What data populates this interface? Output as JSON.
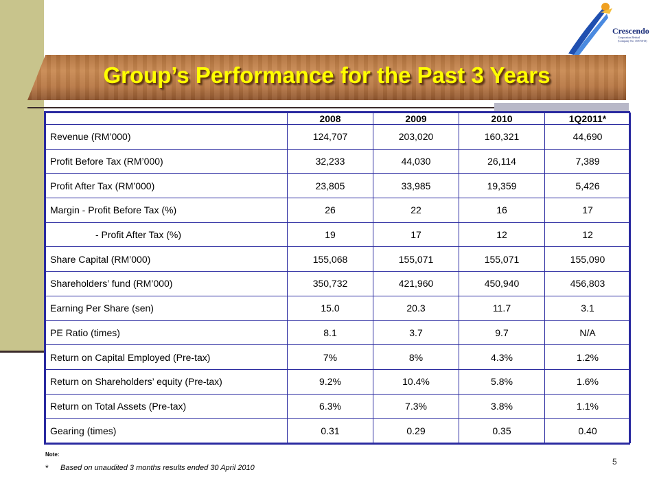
{
  "slide": {
    "title": "Group’s Performance for the Past 3 Years",
    "page_number": "5"
  },
  "logo": {
    "name": "Crescendo",
    "subtitle": "Corporation Berhad",
    "company_no": "(Company No: 359750-D)"
  },
  "table": {
    "headers": [
      "",
      "2008",
      "2009",
      "2010",
      "1Q2011*"
    ],
    "rows": [
      {
        "label": "Revenue (RM’000)",
        "values": [
          "124,707",
          "203,020",
          "160,321",
          "44,690"
        ]
      },
      {
        "label": "Profit Before Tax (RM’000)",
        "values": [
          "32,233",
          "44,030",
          "26,114",
          "7,389"
        ]
      },
      {
        "label": "Profit After Tax (RM’000)",
        "values": [
          "23,805",
          "33,985",
          "19,359",
          "5,426"
        ]
      },
      {
        "label": "Margin - Profit Before Tax (%)",
        "values": [
          "26",
          "22",
          "16",
          "17"
        ]
      },
      {
        "label": "- Profit After Tax (%)",
        "values": [
          "19",
          "17",
          "12",
          "12"
        ],
        "indent": true
      },
      {
        "label": "Share Capital (RM’000)",
        "values": [
          "155,068",
          "155,071",
          "155,071",
          "155,090"
        ]
      },
      {
        "label": "Shareholders’ fund (RM’000)",
        "values": [
          "350,732",
          "421,960",
          "450,940",
          "456,803"
        ]
      },
      {
        "label": "Earning Per Share (sen)",
        "values": [
          "15.0",
          "20.3",
          "11.7",
          "3.1"
        ]
      },
      {
        "label": "PE Ratio (times)",
        "values": [
          "8.1",
          "3.7",
          "9.7",
          "N/A"
        ]
      },
      {
        "label": "Return on Capital Employed (Pre-tax)",
        "values": [
          "7%",
          "8%",
          "4.3%",
          "1.2%"
        ]
      },
      {
        "label": "Return on Shareholders’ equity (Pre-tax)",
        "values": [
          "9.2%",
          "10.4%",
          "5.8%",
          "1.6%"
        ]
      },
      {
        "label": "Return on Total Assets (Pre-tax)",
        "values": [
          "6.3%",
          "7.3%",
          "3.8%",
          "1.1%"
        ]
      },
      {
        "label": "Gearing (times)",
        "values": [
          "0.31",
          "0.29",
          "0.35",
          "0.40"
        ]
      }
    ]
  },
  "note": {
    "label": "Note:",
    "star": "*",
    "text": "Based on unaudited 3 months results ended 30 April 2010"
  },
  "colors": {
    "accent_title": "#ffff00",
    "table_border": "#2a2aa0",
    "left_bar": "#c8c48c"
  }
}
